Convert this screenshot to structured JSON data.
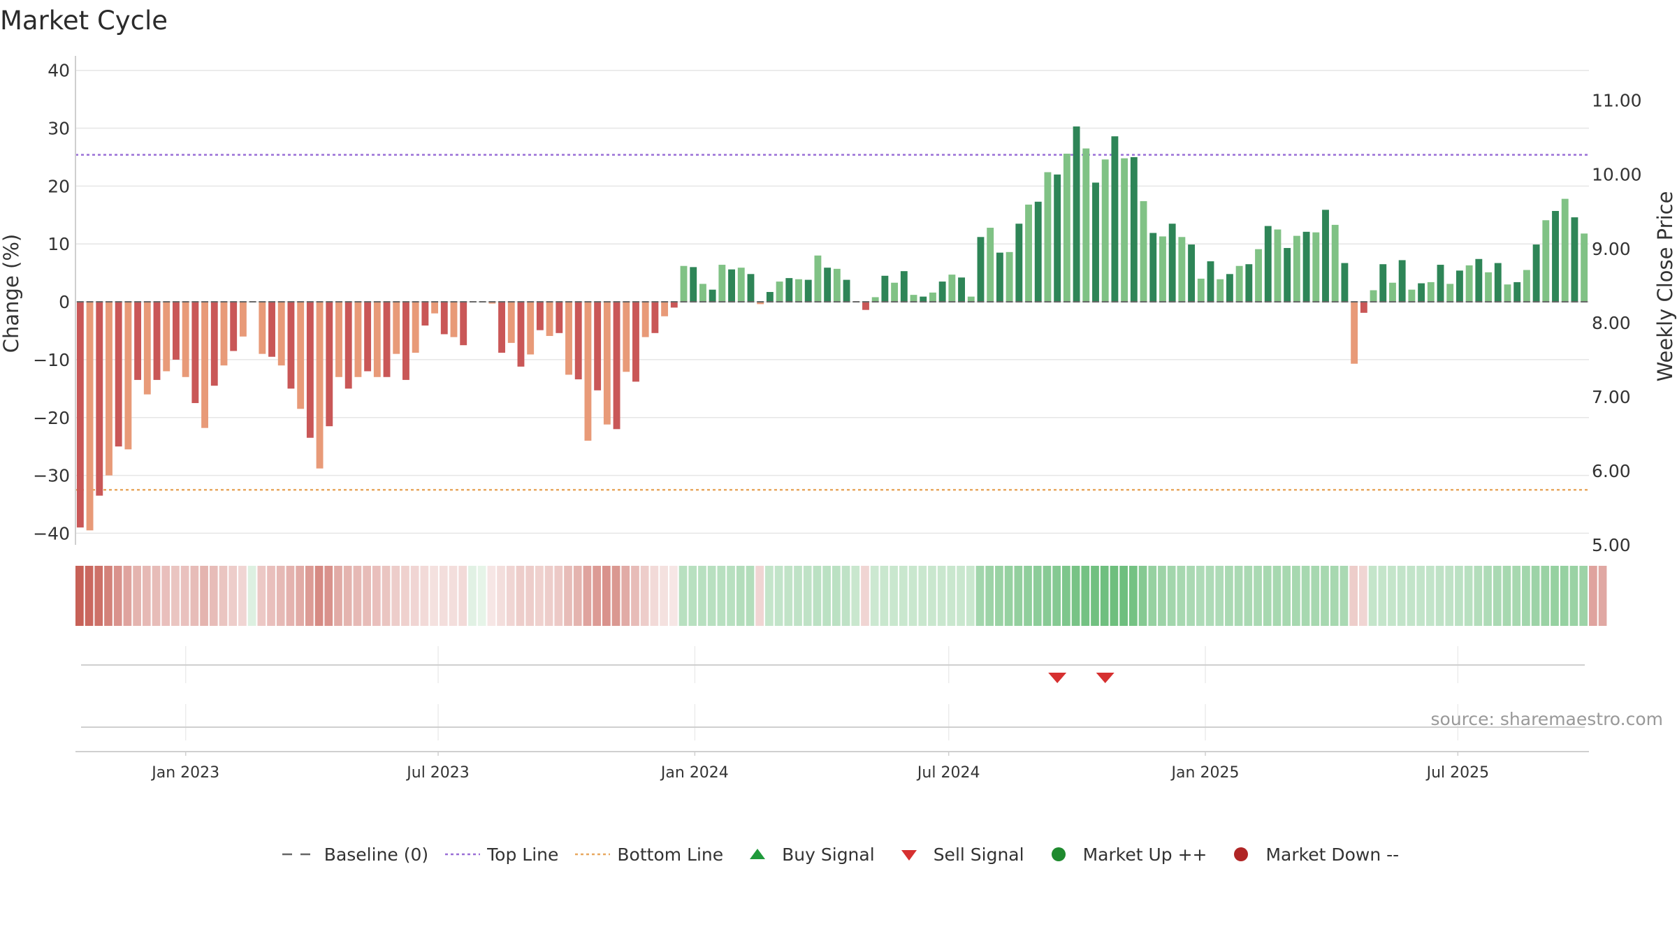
{
  "title": "Market Cycle",
  "source_label": "source: sharemaestro.com",
  "colors": {
    "dark_green": "#2e8557",
    "light_green": "#80c285",
    "dark_red": "#c95757",
    "light_red": "#e89a78",
    "top_line": "#9a6fd6",
    "bottom_line": "#e8a860",
    "baseline": "#666666",
    "sell_marker": "#d63030",
    "buy_marker": "#1f9a3b",
    "market_up": "#1e8a2e",
    "market_down": "#b02525"
  },
  "legend": [
    {
      "key": "baseline",
      "label": "Baseline (0)",
      "icon": "dash-line-icon"
    },
    {
      "key": "top",
      "label": "Top Line",
      "icon": "dotted-line-icon"
    },
    {
      "key": "bottom",
      "label": "Bottom Line",
      "icon": "dotted-line-icon"
    },
    {
      "key": "buy",
      "label": "Buy Signal",
      "icon": "triangle-up-icon"
    },
    {
      "key": "sell",
      "label": "Sell Signal",
      "icon": "triangle-down-icon"
    },
    {
      "key": "up",
      "label": "Market Up ++",
      "icon": "circle-icon"
    },
    {
      "key": "down",
      "label": "Market Down --",
      "icon": "circle-icon"
    }
  ],
  "chart_data": {
    "type": "bar",
    "title": "Market Cycle",
    "ylabel": "Change (%)",
    "y2label": "Weekly Close Price",
    "ylim": [
      -42,
      42.5
    ],
    "yticks": [
      40,
      30,
      20,
      10,
      0,
      -10,
      -20,
      -30,
      -40
    ],
    "ytick_labels": [
      "40",
      "30",
      "20",
      "10",
      "0",
      "−10",
      "−20",
      "−30",
      "−40"
    ],
    "y2lim": [
      5.0,
      11.6
    ],
    "y2ticks": [
      11,
      10,
      9,
      8,
      7,
      6,
      5
    ],
    "y2tick_labels": [
      "11.00",
      "10.00",
      "9.00",
      "8.00",
      "7.00",
      "6.00",
      "5.00"
    ],
    "x_start": "2022-10-14",
    "x_end": "2025-10-03",
    "xticks": [
      {
        "date": "2023-01-01",
        "label": "Jan 2023"
      },
      {
        "date": "2023-07-01",
        "label": "Jul 2023"
      },
      {
        "date": "2024-01-01",
        "label": "Jan 2024"
      },
      {
        "date": "2024-07-01",
        "label": "Jul 2024"
      },
      {
        "date": "2025-01-01",
        "label": "Jan 2025"
      },
      {
        "date": "2025-07-01",
        "label": "Jul 2025"
      }
    ],
    "top_line": 25.4,
    "bottom_line": -32.5,
    "baseline": 0,
    "grid": true,
    "legend_position": "bottom",
    "values": [
      -39,
      -39.5,
      -33.5,
      -30,
      -25,
      -25.5,
      -13.5,
      -16,
      -13.5,
      -12,
      -10,
      -13,
      -17.5,
      -21.8,
      -14.5,
      -11,
      -8.5,
      -6,
      0,
      -9,
      -9.5,
      -11,
      -15,
      -18.5,
      -23.5,
      -28.8,
      -21.5,
      -13,
      -15,
      -13,
      -12,
      -13,
      -13,
      -9,
      -13.5,
      -8.8,
      -4.1,
      -2,
      -5.6,
      -6.1,
      -7.5,
      0,
      0,
      -0.3,
      -8.8,
      -7.1,
      -11.2,
      -9.1,
      -4.9,
      -5.9,
      -5.4,
      -12.6,
      -13.4,
      -24,
      -15.3,
      -21.2,
      -22,
      -12.1,
      -13.8,
      -6.1,
      -5.4,
      -2.5,
      -1,
      6.2,
      6,
      3.1,
      2.1,
      6.4,
      5.6,
      5.9,
      4.8,
      -0.4,
      1.7,
      3.5,
      4.1,
      3.9,
      3.8,
      8,
      5.9,
      5.7,
      3.8,
      0,
      -1.4,
      0.8,
      4.5,
      3.3,
      5.3,
      1.2,
      0.9,
      1.6,
      3.5,
      4.7,
      4.2,
      0.9,
      11.2,
      12.8,
      8.5,
      8.6,
      13.5,
      16.8,
      17.3,
      22.4,
      22,
      25.6,
      30.3,
      26.5,
      20.6,
      24.6,
      28.6,
      24.8,
      25,
      17.4,
      11.9,
      11.3,
      13.5,
      11.2,
      9.9,
      4,
      7,
      3.9,
      4.8,
      6.2,
      6.5,
      9.1,
      13.1,
      12.5,
      9.3,
      11.4,
      12.1,
      12,
      15.9,
      13.3,
      6.7,
      -10.7,
      -1.9,
      2,
      6.5,
      3.3,
      7.2,
      2.1,
      3.2,
      3.4,
      6.4,
      3.1,
      5.4,
      6.3,
      7.4,
      5.1,
      6.7,
      3,
      3.4,
      5.5,
      9.9,
      14.1,
      15.7,
      17.8,
      14.6,
      11.8
    ],
    "band_intensity": [
      0.95,
      0.9,
      0.85,
      0.75,
      0.65,
      0.55,
      0.45,
      0.42,
      0.4,
      0.38,
      0.35,
      0.37,
      0.4,
      0.45,
      0.4,
      0.35,
      0.3,
      0.25,
      0.2,
      0.33,
      0.38,
      0.42,
      0.46,
      0.5,
      0.6,
      0.7,
      0.65,
      0.5,
      0.45,
      0.42,
      0.4,
      0.38,
      0.35,
      0.3,
      0.28,
      0.25,
      0.22,
      0.18,
      0.2,
      0.2,
      0.22,
      0.18,
      0.15,
      0.15,
      0.2,
      0.25,
      0.3,
      0.3,
      0.28,
      0.3,
      0.32,
      0.4,
      0.45,
      0.55,
      0.6,
      0.65,
      0.62,
      0.5,
      0.4,
      0.3,
      0.22,
      0.18,
      0.15,
      0.42,
      0.42,
      0.42,
      0.42,
      0.42,
      0.42,
      0.45,
      0.45,
      0.25,
      0.35,
      0.36,
      0.37,
      0.38,
      0.38,
      0.4,
      0.4,
      0.4,
      0.38,
      0.32,
      0.25,
      0.3,
      0.32,
      0.32,
      0.32,
      0.32,
      0.32,
      0.32,
      0.32,
      0.32,
      0.32,
      0.32,
      0.55,
      0.58,
      0.6,
      0.62,
      0.64,
      0.66,
      0.68,
      0.7,
      0.72,
      0.76,
      0.8,
      0.82,
      0.84,
      0.85,
      0.86,
      0.85,
      0.82,
      0.72,
      0.62,
      0.58,
      0.55,
      0.52,
      0.5,
      0.48,
      0.48,
      0.48,
      0.5,
      0.5,
      0.5,
      0.5,
      0.52,
      0.52,
      0.52,
      0.52,
      0.52,
      0.52,
      0.52,
      0.52,
      0.5,
      0.3,
      0.25,
      0.35,
      0.35,
      0.35,
      0.36,
      0.36,
      0.36,
      0.36,
      0.38,
      0.38,
      0.4,
      0.42,
      0.45,
      0.48,
      0.5,
      0.52,
      0.52,
      0.55,
      0.58,
      0.6,
      0.62,
      0.62,
      0.6,
      0.58,
      0.55,
      0.52
    ],
    "sell_signals": [
      {
        "index": 102
      },
      {
        "index": 107
      }
    ],
    "buy_signals": []
  }
}
